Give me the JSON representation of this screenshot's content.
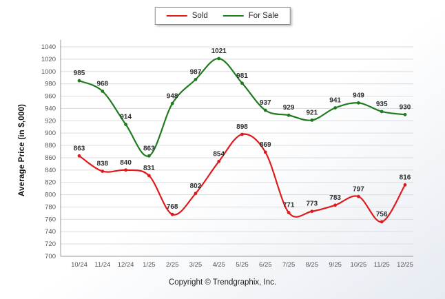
{
  "chart_data": {
    "type": "line",
    "title": "",
    "categories": [
      "10/24",
      "11/24",
      "12/24",
      "1/25",
      "2/25",
      "3/25",
      "4/25",
      "5/25",
      "6/25",
      "7/25",
      "8/25",
      "9/25",
      "10/25",
      "11/25",
      "12/25"
    ],
    "series": [
      {
        "name": "Sold",
        "color": "#e0191c",
        "values": [
          863,
          838,
          840,
          831,
          768,
          802,
          854,
          898,
          869,
          771,
          773,
          783,
          797,
          756,
          816
        ]
      },
      {
        "name": "For Sale",
        "color": "#1e7b1e",
        "values": [
          985,
          968,
          914,
          863,
          948,
          987,
          1021,
          981,
          937,
          929,
          921,
          941,
          949,
          935,
          930
        ]
      }
    ],
    "xlabel": "",
    "ylabel": "Average Price (in $,000)",
    "ylim": [
      700,
      1040
    ],
    "ytick_step": 20,
    "grid": true,
    "legend_position": "top-center"
  },
  "footer": "Copyright © Trendgraphix, Inc."
}
